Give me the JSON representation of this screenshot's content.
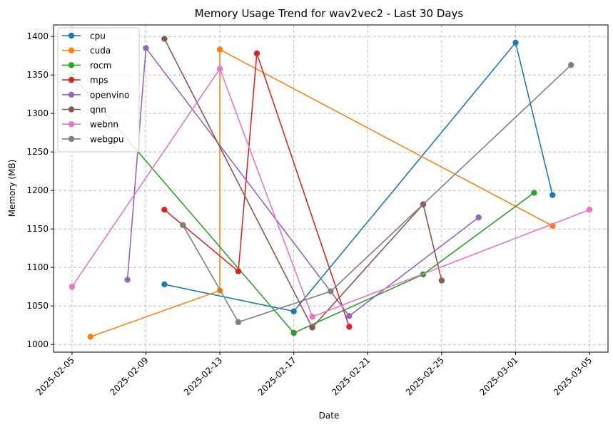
{
  "chart_data": {
    "type": "line",
    "title": "Memory Usage Trend for wav2vec2 - Last 30 Days",
    "xlabel": "Date",
    "ylabel": "Memory (MB)",
    "xlim": [
      "2025-02-04",
      "2025-03-06"
    ],
    "ylim": [
      990,
      1415
    ],
    "x_ticks": [
      "2025-02-05",
      "2025-02-09",
      "2025-02-13",
      "2025-02-17",
      "2025-02-21",
      "2025-02-25",
      "2025-03-01",
      "2025-03-05"
    ],
    "y_ticks": [
      1000,
      1050,
      1100,
      1150,
      1200,
      1250,
      1300,
      1350,
      1400
    ],
    "grid": true,
    "legend_position": "top-left",
    "series": [
      {
        "name": "cpu",
        "color": "#1f77b4",
        "x": [
          "2025-02-10",
          "2025-02-17",
          "2025-03-01",
          "2025-03-03"
        ],
        "y": [
          1078,
          1043,
          1392,
          1194
        ]
      },
      {
        "name": "cuda",
        "color": "#ff7f0e",
        "x": [
          "2025-02-06",
          "2025-02-13",
          "2025-02-13",
          "2025-03-03"
        ],
        "y": [
          1010,
          1070,
          1383,
          1154
        ]
      },
      {
        "name": "rocm",
        "color": "#2ca02c",
        "x": [
          "2025-02-05",
          "2025-02-17",
          "2025-02-24",
          "2025-03-02"
        ],
        "y": [
          1350,
          1015,
          1091,
          1197
        ]
      },
      {
        "name": "mps",
        "color": "#d62728",
        "x": [
          "2025-02-10",
          "2025-02-14",
          "2025-02-15",
          "2025-02-20"
        ],
        "y": [
          1175,
          1095,
          1378,
          1023
        ]
      },
      {
        "name": "openvino",
        "color": "#9467bd",
        "x": [
          "2025-02-08",
          "2025-02-09",
          "2025-02-20",
          "2025-02-27"
        ],
        "y": [
          1084,
          1385,
          1037,
          1165
        ]
      },
      {
        "name": "qnn",
        "color": "#8c564b",
        "x": [
          "2025-02-10",
          "2025-02-18",
          "2025-02-24",
          "2025-02-25"
        ],
        "y": [
          1397,
          1022,
          1182,
          1083
        ]
      },
      {
        "name": "webnn",
        "color": "#e377c2",
        "x": [
          "2025-02-05",
          "2025-02-13",
          "2025-02-18",
          "2025-03-05"
        ],
        "y": [
          1075,
          1358,
          1036,
          1175
        ]
      },
      {
        "name": "webgpu",
        "color": "#7f7f7f",
        "x": [
          "2025-02-11",
          "2025-02-14",
          "2025-02-19",
          "2025-03-04"
        ],
        "y": [
          1155,
          1029,
          1069,
          1363
        ]
      }
    ]
  }
}
